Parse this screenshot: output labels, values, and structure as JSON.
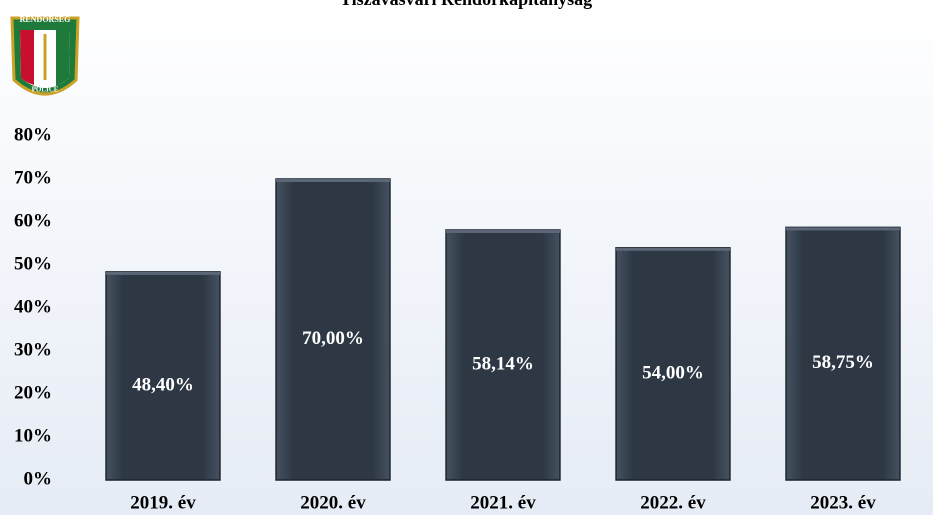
{
  "chart_data": {
    "type": "bar",
    "title": "Tiszavasvári Rendőrkapitányság",
    "categories": [
      "2019. év",
      "2020. év",
      "2021. év",
      "2022. év",
      "2023. év"
    ],
    "values": [
      48.4,
      70.0,
      58.14,
      54.0,
      58.75
    ],
    "value_labels": [
      "48,40%",
      "70,00%",
      "58,14%",
      "54,00%",
      "58,75%"
    ],
    "color": "#2e3845",
    "ylim": [
      0,
      80
    ],
    "yticks": [
      {
        "value": 0,
        "label": "0%"
      },
      {
        "value": 10,
        "label": "10%"
      },
      {
        "value": 20,
        "label": "20%"
      },
      {
        "value": 30,
        "label": "30%"
      },
      {
        "value": 40,
        "label": "40%"
      },
      {
        "value": 50,
        "label": "50%"
      },
      {
        "value": 60,
        "label": "60%"
      },
      {
        "value": 70,
        "label": "70%"
      },
      {
        "value": 80,
        "label": "80%"
      }
    ],
    "grid": false
  },
  "logo": {
    "top": "RENDŐRSÉG",
    "bottom": "POLICE"
  }
}
